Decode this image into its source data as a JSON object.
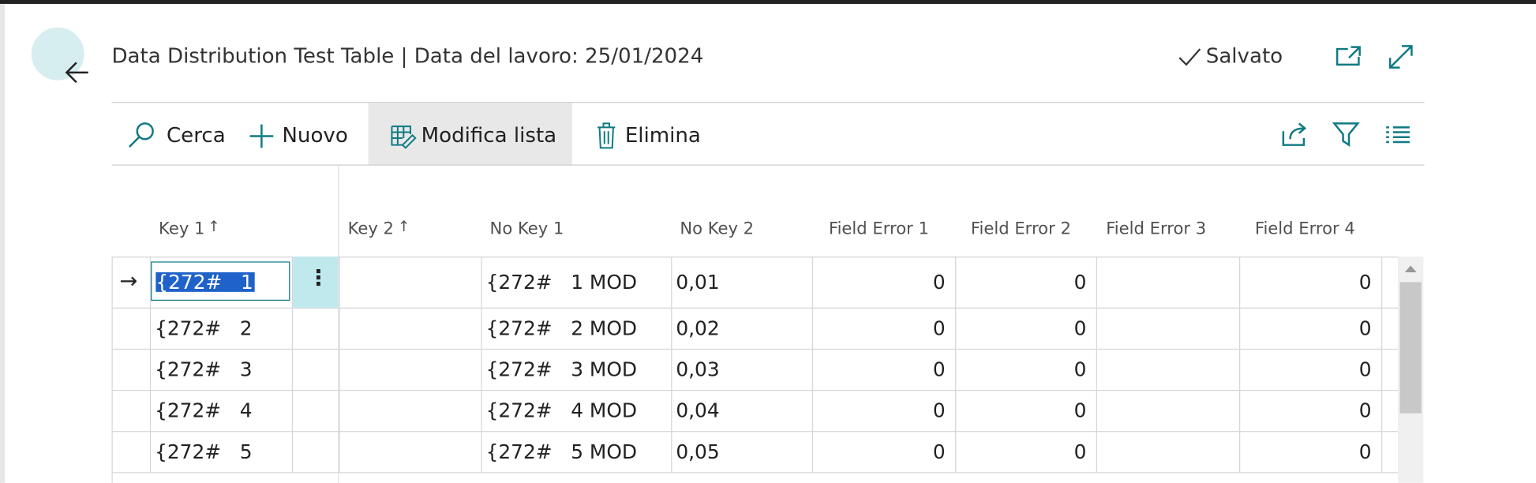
{
  "header": {
    "title": "Data Distribution Test Table | Data del lavoro: 25/01/2024",
    "status": "Salvato"
  },
  "toolbar": {
    "actions": [
      "Cerca",
      "Nuovo",
      "Modifica lista",
      "Elimina"
    ]
  },
  "table": {
    "columns": [
      "Key 1",
      "Key 2",
      "No Key 1",
      "No Key 2",
      "Field Error 1",
      "Field Error 2",
      "Field Error 3",
      "Field Error 4"
    ],
    "rows": [
      {
        "key_1": "{272#   1",
        "no_key_1": "{272#   1 MOD",
        "no_key_2": "0,01",
        "field_error_1": 0,
        "field_error_2": 0,
        "field_error_4": 0
      },
      {
        "key_1": "{272#   2",
        "no_key_1": "{272#   2 MOD",
        "no_key_2": "0,02",
        "field_error_1": 0,
        "field_error_2": 0,
        "field_error_4": 0
      },
      {
        "key_1": "{272#   3",
        "no_key_1": "{272#   3 MOD",
        "no_key_2": "0,03",
        "field_error_1": 0,
        "field_error_2": 0,
        "field_error_4": 0
      },
      {
        "key_1": "{272#   4",
        "no_key_1": "{272#   4 MOD",
        "no_key_2": "0,04",
        "field_error_1": 0,
        "field_error_2": 0,
        "field_error_4": 0
      },
      {
        "key_1": "{272#   5",
        "no_key_1": "{272#   5 MOD",
        "no_key_2": "0,05",
        "field_error_1": 0,
        "field_error_2": 0,
        "field_error_4": 0
      }
    ]
  }
}
